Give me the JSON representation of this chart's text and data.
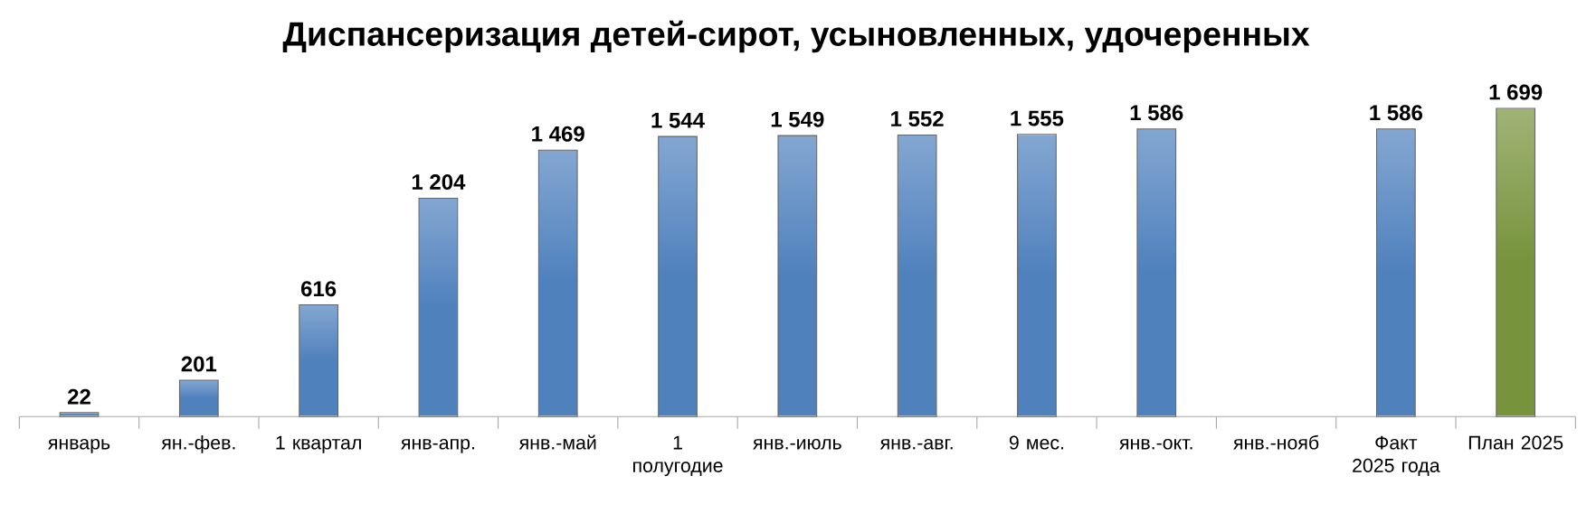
{
  "chart_data": {
    "type": "bar",
    "title": "Диспансеризация детей-сирот, усыновленных, удочеренных",
    "categories": [
      "январь",
      "ян.-фев.",
      "1 квартал",
      "янв-апр.",
      "янв.-май",
      "1 полугодие",
      "янв.-июль",
      "янв.-авг.",
      "9 мес.",
      "янв.-окт.",
      "янв.-нояб",
      "Факт 2025 года",
      "План 2025"
    ],
    "values": [
      22,
      201,
      616,
      1204,
      1469,
      1544,
      1549,
      1552,
      1555,
      1586,
      null,
      1586,
      1699
    ],
    "value_labels": [
      "22",
      "201",
      "616",
      "1 204",
      "1 469",
      "1 544",
      "1 549",
      "1 552",
      "1 555",
      "1 586",
      null,
      "1 586",
      "1 699"
    ],
    "colors": [
      "#4f81bd",
      "#4f81bd",
      "#4f81bd",
      "#4f81bd",
      "#4f81bd",
      "#4f81bd",
      "#4f81bd",
      "#4f81bd",
      "#4f81bd",
      "#4f81bd",
      "#4f81bd",
      "#4f81bd",
      "#77933c"
    ]
  }
}
